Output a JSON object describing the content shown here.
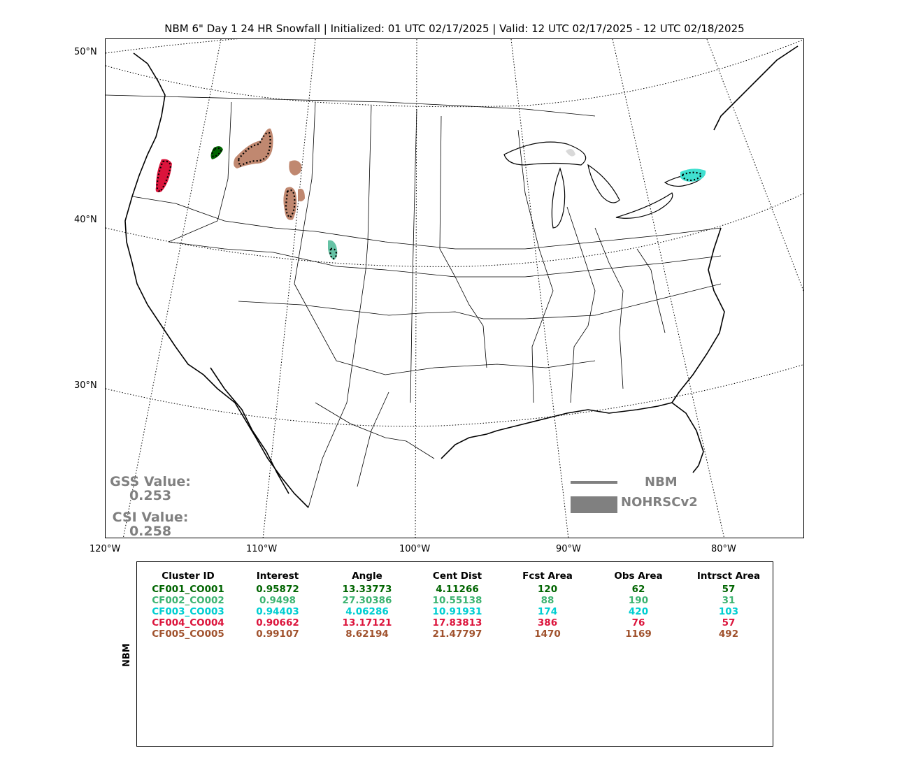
{
  "title": "NBM 6\" Day 1 24 HR Snowfall | Initialized: 01 UTC 02/17/2025 | Valid: 12 UTC 02/17/2025 - 12 UTC 02/18/2025",
  "lat_labels": [
    "50°N",
    "40°N",
    "30°N"
  ],
  "lon_labels": [
    "120°W",
    "110°W",
    "100°W",
    "90°W",
    "80°W"
  ],
  "scores": {
    "gss_label": "GSS Value:",
    "gss_value": "0.253",
    "csi_label": "CSI Value:",
    "csi_value": "0.258"
  },
  "legend": {
    "line_label": "NBM",
    "fill_label": "NOHRSCv2",
    "color": "#808080"
  },
  "table": {
    "row_label": "NBM",
    "headers": [
      "Cluster ID",
      "Interest",
      "Angle",
      "Cent Dist",
      "Fcst Area",
      "Obs Area",
      "Intrsct Area"
    ],
    "rows": [
      {
        "color": "#006400",
        "cells": [
          "CF001_CO001",
          "0.95872",
          "13.33773",
          "4.11266",
          "120",
          "62",
          "57"
        ]
      },
      {
        "color": "#3cb371",
        "cells": [
          "CF002_CO002",
          "0.9498",
          "27.30386",
          "10.55138",
          "88",
          "190",
          "31"
        ]
      },
      {
        "color": "#00ced1",
        "cells": [
          "CF003_CO003",
          "0.94403",
          "4.06286",
          "10.91931",
          "174",
          "420",
          "103"
        ]
      },
      {
        "color": "#dc143c",
        "cells": [
          "CF004_CO004",
          "0.90662",
          "13.17121",
          "17.83813",
          "386",
          "76",
          "57"
        ]
      },
      {
        "color": "#a0522d",
        "cells": [
          "CF005_CO005",
          "0.99107",
          "8.62194",
          "21.47797",
          "1470",
          "1169",
          "492"
        ]
      }
    ]
  },
  "clusters": [
    {
      "id": "CF001_CO001",
      "color": "#006400",
      "fill": "#006400"
    },
    {
      "id": "CF002_CO002",
      "color": "#3cb371",
      "fill": "#66c2a5"
    },
    {
      "id": "CF003_CO003",
      "color": "#00ced1",
      "fill": "#40e0d0"
    },
    {
      "id": "CF004_CO004",
      "color": "#dc143c",
      "fill": "#dc143c"
    },
    {
      "id": "CF005_CO005",
      "color": "#a0522d",
      "fill": "#c08870"
    }
  ]
}
